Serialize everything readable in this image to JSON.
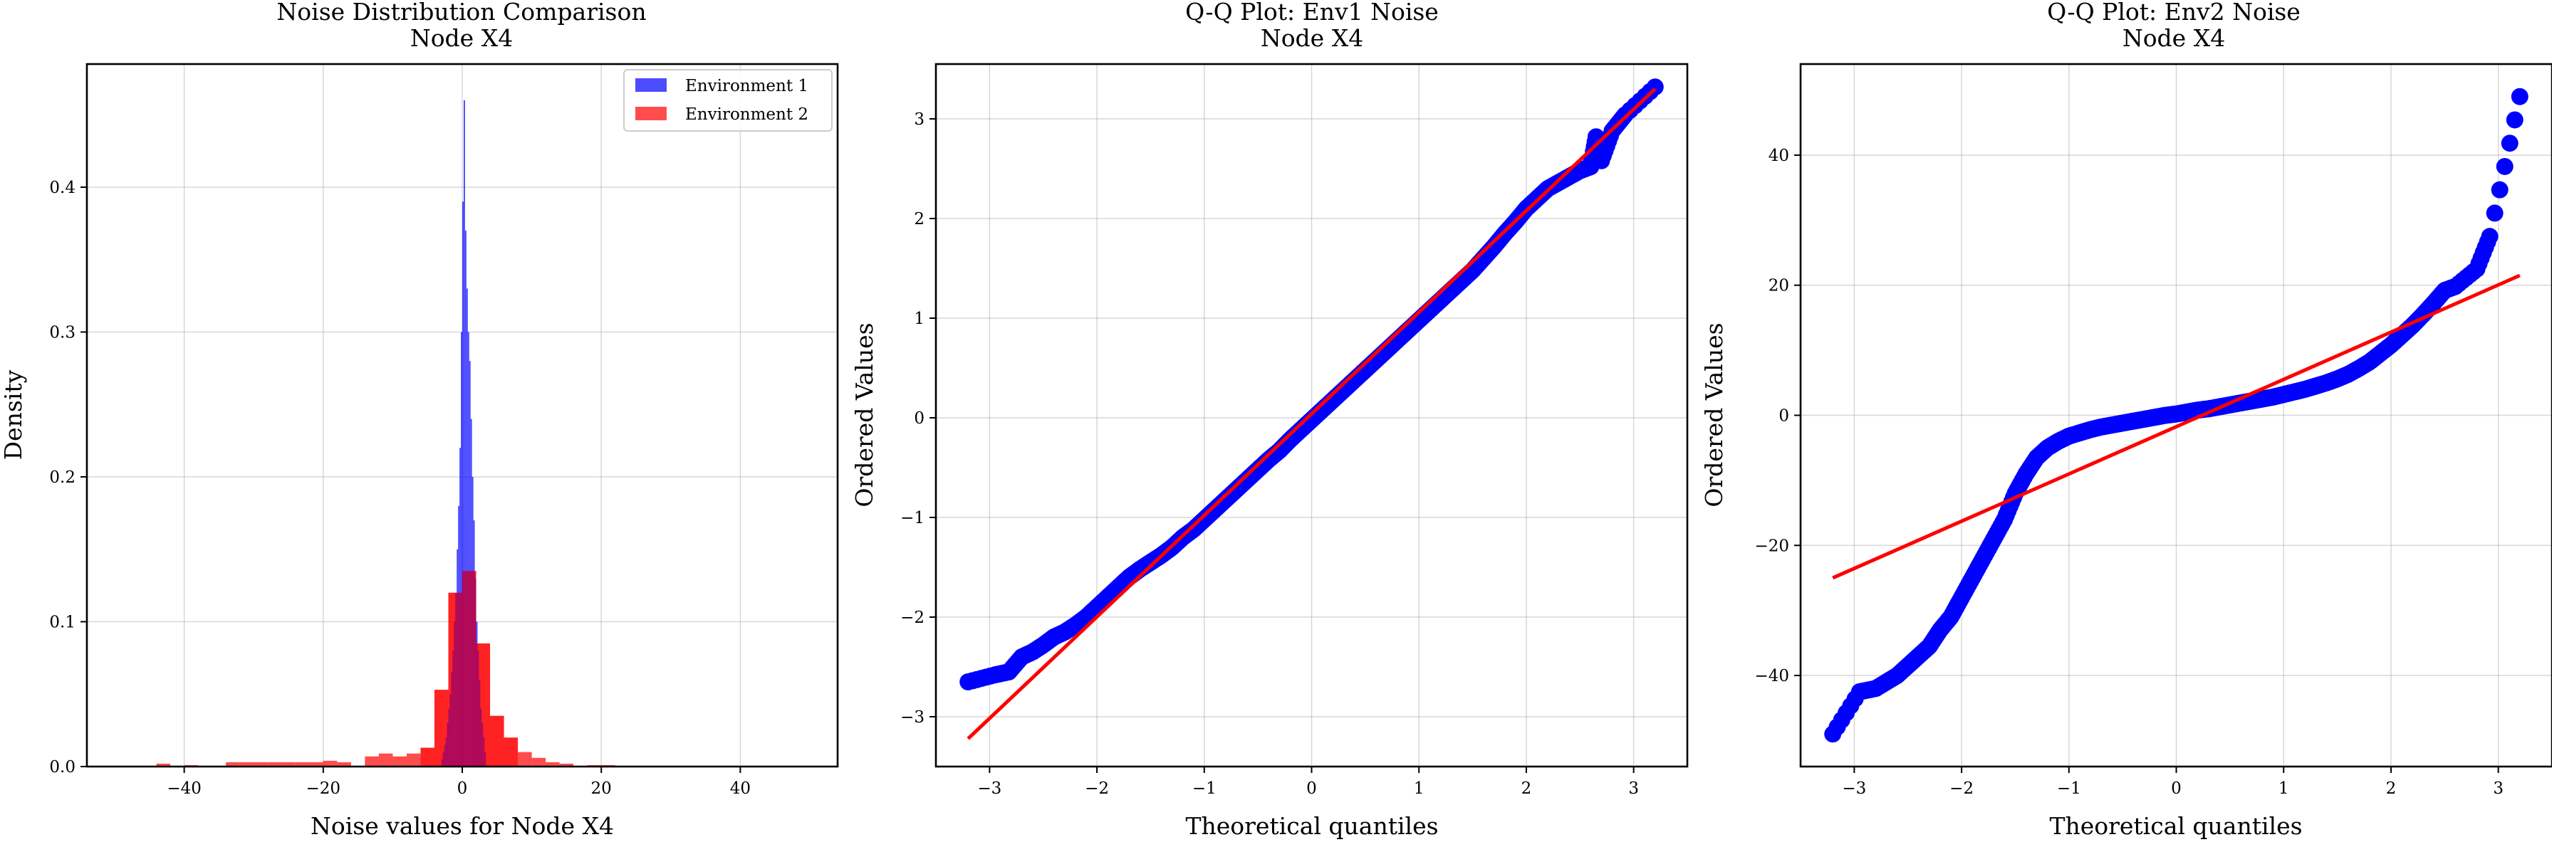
{
  "chart_data": [
    {
      "type": "bar",
      "title": "Noise Distribution Comparison",
      "subtitle": "Node X4",
      "xlabel": "Noise values for Node X4",
      "ylabel": "Density",
      "xlim": [
        -54,
        54
      ],
      "ylim": [
        0,
        0.485
      ],
      "xticks": [
        -40,
        -20,
        0,
        20,
        40
      ],
      "xtick_labels": [
        "−40",
        "−20",
        "0",
        "20",
        "40"
      ],
      "yticks": [
        0.0,
        0.1,
        0.2,
        0.3,
        0.4
      ],
      "ytick_labels": [
        "0.0",
        "0.1",
        "0.2",
        "0.3",
        "0.4"
      ],
      "grid": true,
      "legend_position": "top-right",
      "series": [
        {
          "name": "Environment 1",
          "color": "#0000ff",
          "bin_width": 0.2,
          "bins": [
            [
              -3.0,
              0.005
            ],
            [
              -2.8,
              0.01
            ],
            [
              -2.6,
              0.015
            ],
            [
              -2.4,
              0.02
            ],
            [
              -2.2,
              0.03
            ],
            [
              -2.0,
              0.04
            ],
            [
              -1.8,
              0.05
            ],
            [
              -1.6,
              0.065
            ],
            [
              -1.4,
              0.08
            ],
            [
              -1.2,
              0.1
            ],
            [
              -1.0,
              0.12
            ],
            [
              -0.8,
              0.15
            ],
            [
              -0.6,
              0.18
            ],
            [
              -0.4,
              0.22
            ],
            [
              -0.2,
              0.3
            ],
            [
              0.0,
              0.39
            ],
            [
              0.2,
              0.46
            ],
            [
              0.4,
              0.37
            ],
            [
              0.6,
              0.33
            ],
            [
              0.8,
              0.3
            ],
            [
              1.0,
              0.28
            ],
            [
              1.2,
              0.24
            ],
            [
              1.4,
              0.2
            ],
            [
              1.6,
              0.17
            ],
            [
              1.8,
              0.13
            ],
            [
              2.0,
              0.1
            ],
            [
              2.2,
              0.08
            ],
            [
              2.4,
              0.06
            ],
            [
              2.6,
              0.04
            ],
            [
              2.8,
              0.03
            ],
            [
              3.0,
              0.02
            ],
            [
              3.2,
              0.01
            ]
          ]
        },
        {
          "name": "Environment 2",
          "color": "#ff0000",
          "bin_width": 2.0,
          "bins": [
            [
              -44,
              0.002
            ],
            [
              -40,
              0.001
            ],
            [
              -34,
              0.003
            ],
            [
              -32,
              0.003
            ],
            [
              -30,
              0.003
            ],
            [
              -28,
              0.003
            ],
            [
              -26,
              0.003
            ],
            [
              -24,
              0.003
            ],
            [
              -22,
              0.003
            ],
            [
              -20,
              0.004
            ],
            [
              -18,
              0.003
            ],
            [
              -14,
              0.007
            ],
            [
              -12,
              0.009
            ],
            [
              -10,
              0.007
            ],
            [
              -8,
              0.009
            ],
            [
              -6,
              0.013
            ],
            [
              -4,
              0.053
            ],
            [
              -2,
              0.12
            ],
            [
              0,
              0.135
            ],
            [
              2,
              0.085
            ],
            [
              4,
              0.035
            ],
            [
              6,
              0.02
            ],
            [
              8,
              0.01
            ],
            [
              10,
              0.006
            ],
            [
              12,
              0.003
            ],
            [
              14,
              0.002
            ],
            [
              18,
              0.001
            ],
            [
              20,
              0.001
            ]
          ]
        }
      ]
    },
    {
      "type": "scatter",
      "title": "Q-Q Plot: Env1 Noise",
      "subtitle": "Node X4",
      "xlabel": "Theoretical quantiles",
      "ylabel": "Ordered Values",
      "xlim": [
        -3.5,
        3.5
      ],
      "ylim": [
        -3.5,
        3.55
      ],
      "xticks": [
        -3,
        -2,
        -1,
        0,
        1,
        2,
        3
      ],
      "xtick_labels": [
        "−3",
        "−2",
        "−1",
        "0",
        "1",
        "2",
        "3"
      ],
      "yticks": [
        -3,
        -2,
        -1,
        0,
        1,
        2,
        3
      ],
      "ytick_labels": [
        "−3",
        "−2",
        "−1",
        "0",
        "1",
        "2",
        "3"
      ],
      "grid": true,
      "point_color": "#0000ff",
      "fit_color": "#ff0000",
      "fit_line": [
        [
          -3.2,
          -3.22
        ],
        [
          3.2,
          3.3
        ]
      ],
      "points": [
        [
          -3.2,
          -2.65
        ],
        [
          -2.95,
          -2.58
        ],
        [
          -2.82,
          -2.55
        ],
        [
          -2.7,
          -2.4
        ],
        [
          -2.6,
          -2.35
        ],
        [
          -2.5,
          -2.28
        ],
        [
          -2.4,
          -2.2
        ],
        [
          -2.3,
          -2.15
        ],
        [
          -2.2,
          -2.08
        ],
        [
          -2.1,
          -2.0
        ],
        [
          -2.0,
          -1.9
        ],
        [
          -1.9,
          -1.8
        ],
        [
          -1.8,
          -1.7
        ],
        [
          -1.7,
          -1.6
        ],
        [
          -1.6,
          -1.52
        ],
        [
          -1.5,
          -1.45
        ],
        [
          -1.4,
          -1.38
        ],
        [
          -1.3,
          -1.3
        ],
        [
          -1.2,
          -1.2
        ],
        [
          -1.1,
          -1.12
        ],
        [
          -1.0,
          -1.02
        ],
        [
          -0.9,
          -0.92
        ],
        [
          -0.8,
          -0.82
        ],
        [
          -0.7,
          -0.72
        ],
        [
          -0.6,
          -0.62
        ],
        [
          -0.5,
          -0.52
        ],
        [
          -0.4,
          -0.42
        ],
        [
          -0.3,
          -0.33
        ],
        [
          -0.2,
          -0.22
        ],
        [
          -0.1,
          -0.12
        ],
        [
          0.0,
          -0.02
        ],
        [
          0.1,
          0.08
        ],
        [
          0.2,
          0.18
        ],
        [
          0.3,
          0.28
        ],
        [
          0.4,
          0.38
        ],
        [
          0.5,
          0.48
        ],
        [
          0.6,
          0.58
        ],
        [
          0.7,
          0.68
        ],
        [
          0.8,
          0.78
        ],
        [
          0.9,
          0.88
        ],
        [
          1.0,
          0.98
        ],
        [
          1.1,
          1.08
        ],
        [
          1.2,
          1.18
        ],
        [
          1.3,
          1.28
        ],
        [
          1.4,
          1.38
        ],
        [
          1.5,
          1.48
        ],
        [
          1.6,
          1.6
        ],
        [
          1.7,
          1.72
        ],
        [
          1.8,
          1.85
        ],
        [
          1.9,
          1.97
        ],
        [
          2.0,
          2.1
        ],
        [
          2.1,
          2.2
        ],
        [
          2.2,
          2.3
        ],
        [
          2.3,
          2.36
        ],
        [
          2.4,
          2.42
        ],
        [
          2.5,
          2.48
        ],
        [
          2.6,
          2.52
        ],
        [
          2.7,
          2.58
        ],
        [
          2.65,
          2.82
        ],
        [
          2.8,
          2.88
        ],
        [
          2.92,
          3.04
        ],
        [
          3.2,
          3.32
        ]
      ]
    },
    {
      "type": "scatter",
      "title": "Q-Q Plot: Env2 Noise",
      "subtitle": "Node X4",
      "xlabel": "Theoretical quantiles",
      "ylabel": "Ordered Values",
      "xlim": [
        -3.5,
        3.5
      ],
      "ylim": [
        -54,
        54
      ],
      "xticks": [
        -3,
        -2,
        -1,
        0,
        1,
        2,
        3
      ],
      "xtick_labels": [
        "−3",
        "−2",
        "−1",
        "0",
        "1",
        "2",
        "3"
      ],
      "yticks": [
        -40,
        -20,
        0,
        20,
        40
      ],
      "ytick_labels": [
        "−40",
        "−20",
        "0",
        "20",
        "40"
      ],
      "grid": true,
      "point_color": "#0000ff",
      "fit_color": "#ff0000",
      "fit_line": [
        [
          -3.2,
          -25
        ],
        [
          3.2,
          21.5
        ]
      ],
      "points": [
        [
          -3.2,
          -49
        ],
        [
          -2.95,
          -42.5
        ],
        [
          -2.8,
          -42
        ],
        [
          -2.7,
          -41
        ],
        [
          -2.6,
          -40
        ],
        [
          -2.5,
          -38.5
        ],
        [
          -2.4,
          -37
        ],
        [
          -2.3,
          -35.5
        ],
        [
          -2.2,
          -33
        ],
        [
          -2.1,
          -31
        ],
        [
          -2.0,
          -28
        ],
        [
          -1.9,
          -25
        ],
        [
          -1.8,
          -22
        ],
        [
          -1.7,
          -19
        ],
        [
          -1.6,
          -16
        ],
        [
          -1.5,
          -12
        ],
        [
          -1.4,
          -9
        ],
        [
          -1.3,
          -6.5
        ],
        [
          -1.2,
          -5
        ],
        [
          -1.1,
          -4
        ],
        [
          -1.0,
          -3.2
        ],
        [
          -0.9,
          -2.7
        ],
        [
          -0.8,
          -2.2
        ],
        [
          -0.7,
          -1.8
        ],
        [
          -0.6,
          -1.5
        ],
        [
          -0.5,
          -1.2
        ],
        [
          -0.4,
          -0.9
        ],
        [
          -0.3,
          -0.6
        ],
        [
          -0.2,
          -0.3
        ],
        [
          -0.1,
          0.0
        ],
        [
          0.0,
          0.2
        ],
        [
          0.1,
          0.5
        ],
        [
          0.2,
          0.8
        ],
        [
          0.3,
          1.0
        ],
        [
          0.4,
          1.3
        ],
        [
          0.5,
          1.6
        ],
        [
          0.6,
          1.9
        ],
        [
          0.7,
          2.2
        ],
        [
          0.8,
          2.5
        ],
        [
          0.9,
          2.8
        ],
        [
          1.0,
          3.2
        ],
        [
          1.1,
          3.6
        ],
        [
          1.2,
          4.0
        ],
        [
          1.3,
          4.5
        ],
        [
          1.4,
          5.0
        ],
        [
          1.5,
          5.6
        ],
        [
          1.6,
          6.3
        ],
        [
          1.7,
          7.2
        ],
        [
          1.8,
          8.2
        ],
        [
          1.9,
          9.5
        ],
        [
          2.0,
          10.8
        ],
        [
          2.1,
          12.3
        ],
        [
          2.2,
          13.8
        ],
        [
          2.3,
          15.5
        ],
        [
          2.4,
          17.3
        ],
        [
          2.5,
          19.2
        ],
        [
          2.6,
          19.8
        ],
        [
          2.8,
          22.5
        ],
        [
          2.92,
          27.5
        ],
        [
          3.2,
          49
        ]
      ]
    }
  ]
}
